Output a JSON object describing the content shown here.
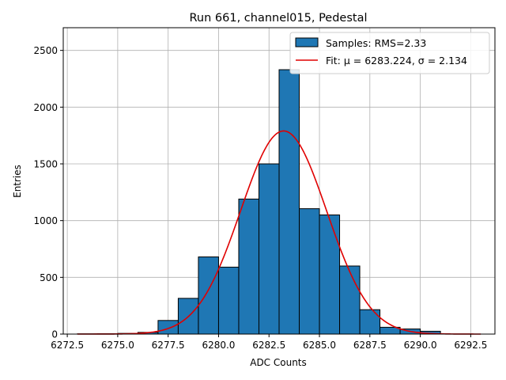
{
  "chart_data": {
    "type": "bar",
    "title": "Run 661, channel015, Pedestal",
    "xlabel": "ADC Counts",
    "ylabel": "Entries",
    "xlim": [
      6272.3,
      6293.7
    ],
    "ylim": [
      0,
      2700
    ],
    "xticks": [
      6272.5,
      6275.0,
      6277.5,
      6280.0,
      6282.5,
      6285.0,
      6287.5,
      6290.0,
      6292.5
    ],
    "xtick_labels": [
      "6272.5",
      "6275.0",
      "6277.5",
      "6280.0",
      "6282.5",
      "6285.0",
      "6287.5",
      "6290.0",
      "6292.5"
    ],
    "yticks": [
      0,
      500,
      1000,
      1500,
      2000,
      2500
    ],
    "ytick_labels": [
      "0",
      "500",
      "1000",
      "1500",
      "2000",
      "2500"
    ],
    "grid": true,
    "legend_position": "top-right",
    "bin_edges": [
      6273,
      6274,
      6275,
      6276,
      6277,
      6278,
      6279,
      6280,
      6281,
      6282,
      6283,
      6284,
      6285,
      6286,
      6287,
      6288,
      6289,
      6290,
      6291
    ],
    "bar_color": "#1f77b4",
    "edge_color": "#000000",
    "fit_color": "#e00000",
    "series": [
      {
        "name": "Samples: RMS=2.33",
        "values": [
          2,
          3,
          6,
          15,
          120,
          315,
          680,
          590,
          1190,
          1500,
          2330,
          1105,
          1050,
          600,
          215,
          60,
          45,
          25
        ]
      }
    ],
    "fit": {
      "name": "Fit: μ = 6283.224, σ = 2.134",
      "mu": 6283.224,
      "sigma": 2.134,
      "amplitude": 1790,
      "x_range": [
        6273,
        6293
      ]
    }
  }
}
